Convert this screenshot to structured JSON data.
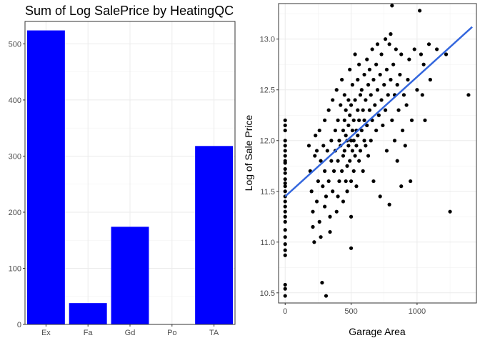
{
  "chart_data": [
    {
      "type": "bar",
      "title": "Sum of Log SalePrice by HeatingQC",
      "xlabel": "",
      "ylabel": "",
      "categories": [
        "Ex",
        "Fa",
        "Gd",
        "Po",
        "TA"
      ],
      "values": [
        524,
        38,
        174,
        0,
        318
      ],
      "ylim": [
        0,
        540
      ],
      "yticks": [
        0,
        100,
        200,
        300,
        400,
        500
      ],
      "bar_color": "#0000ff",
      "grid": true
    },
    {
      "type": "scatter",
      "title": "",
      "xlabel": "Garage Area",
      "ylabel": "Log of Sale Price",
      "xlim": [
        -50,
        1450
      ],
      "ylim": [
        10.4,
        13.35
      ],
      "xticks": [
        0,
        500,
        1000
      ],
      "yticks": [
        10.5,
        11.0,
        11.5,
        12.0,
        12.5,
        13.0
      ],
      "point_color": "#000000",
      "trend_color": "#3366dd",
      "trend_line": {
        "x": [
          0,
          1418
        ],
        "y": [
          11.45,
          13.12
        ]
      },
      "points": [
        [
          0,
          12.2
        ],
        [
          0,
          12.15
        ],
        [
          0,
          12.1
        ],
        [
          0,
          12.0
        ],
        [
          0,
          11.95
        ],
        [
          0,
          11.9
        ],
        [
          0,
          11.85
        ],
        [
          0,
          11.8
        ],
        [
          0,
          11.78
        ],
        [
          0,
          11.72
        ],
        [
          0,
          11.68
        ],
        [
          0,
          11.62
        ],
        [
          0,
          11.58
        ],
        [
          0,
          11.55
        ],
        [
          0,
          11.5
        ],
        [
          0,
          11.45
        ],
        [
          0,
          11.4
        ],
        [
          0,
          11.35
        ],
        [
          0,
          11.3
        ],
        [
          0,
          11.25
        ],
        [
          0,
          11.2
        ],
        [
          0,
          11.12
        ],
        [
          0,
          11.05
        ],
        [
          0,
          10.98
        ],
        [
          0,
          10.92
        ],
        [
          0,
          10.87
        ],
        [
          0,
          10.58
        ],
        [
          0,
          10.54
        ],
        [
          0,
          10.47
        ],
        [
          180,
          11.95
        ],
        [
          190,
          11.7
        ],
        [
          200,
          11.5
        ],
        [
          210,
          11.3
        ],
        [
          210,
          11.15
        ],
        [
          220,
          11.0
        ],
        [
          225,
          11.85
        ],
        [
          230,
          12.05
        ],
        [
          240,
          11.9
        ],
        [
          240,
          11.4
        ],
        [
          250,
          11.6
        ],
        [
          260,
          12.1
        ],
        [
          260,
          11.2
        ],
        [
          270,
          11.8
        ],
        [
          270,
          11.05
        ],
        [
          280,
          10.6
        ],
        [
          285,
          11.55
        ],
        [
          290,
          11.95
        ],
        [
          300,
          12.2
        ],
        [
          300,
          11.7
        ],
        [
          300,
          11.35
        ],
        [
          310,
          10.47
        ],
        [
          310,
          11.45
        ],
        [
          320,
          11.9
        ],
        [
          330,
          12.3
        ],
        [
          330,
          11.6
        ],
        [
          340,
          11.1
        ],
        [
          340,
          11.25
        ],
        [
          350,
          11.8
        ],
        [
          350,
          12.0
        ],
        [
          360,
          12.4
        ],
        [
          360,
          11.5
        ],
        [
          370,
          11.7
        ],
        [
          380,
          12.1
        ],
        [
          380,
          11.9
        ],
        [
          390,
          12.5
        ],
        [
          390,
          11.3
        ],
        [
          400,
          12.2
        ],
        [
          400,
          11.8
        ],
        [
          400,
          11.45
        ],
        [
          410,
          12.0
        ],
        [
          410,
          11.6
        ],
        [
          420,
          12.35
        ],
        [
          420,
          11.95
        ],
        [
          430,
          11.7
        ],
        [
          430,
          12.6
        ],
        [
          440,
          11.85
        ],
        [
          440,
          12.1
        ],
        [
          440,
          11.4
        ],
        [
          450,
          12.2
        ],
        [
          450,
          11.9
        ],
        [
          450,
          12.45
        ],
        [
          460,
          11.6
        ],
        [
          460,
          12.05
        ],
        [
          460,
          12.3
        ],
        [
          470,
          11.75
        ],
        [
          470,
          12.0
        ],
        [
          470,
          11.5
        ],
        [
          480,
          12.15
        ],
        [
          480,
          12.4
        ],
        [
          480,
          11.95
        ],
        [
          490,
          11.8
        ],
        [
          490,
          12.7
        ],
        [
          490,
          12.25
        ],
        [
          500,
          12.0
        ],
        [
          500,
          11.6
        ],
        [
          500,
          12.35
        ],
        [
          500,
          11.25
        ],
        [
          500,
          10.94
        ],
        [
          510,
          12.1
        ],
        [
          510,
          11.9
        ],
        [
          510,
          12.55
        ],
        [
          520,
          11.7
        ],
        [
          520,
          12.2
        ],
        [
          520,
          12.0
        ],
        [
          530,
          12.4
        ],
        [
          530,
          11.85
        ],
        [
          530,
          12.85
        ],
        [
          540,
          12.1
        ],
        [
          540,
          11.95
        ],
        [
          540,
          11.55
        ],
        [
          550,
          12.3
        ],
        [
          550,
          12.6
        ],
        [
          550,
          12.05
        ],
        [
          560,
          11.8
        ],
        [
          560,
          12.2
        ],
        [
          560,
          12.75
        ],
        [
          570,
          12.45
        ],
        [
          570,
          11.9
        ],
        [
          580,
          12.1
        ],
        [
          580,
          12.5
        ],
        [
          590,
          12.3
        ],
        [
          590,
          11.7
        ],
        [
          600,
          12.65
        ],
        [
          600,
          12.0
        ],
        [
          600,
          12.2
        ],
        [
          610,
          12.4
        ],
        [
          610,
          11.95
        ],
        [
          620,
          12.8
        ],
        [
          620,
          12.15
        ],
        [
          630,
          12.55
        ],
        [
          630,
          11.85
        ],
        [
          640,
          12.3
        ],
        [
          640,
          12.7
        ],
        [
          650,
          12.0
        ],
        [
          650,
          12.45
        ],
        [
          660,
          12.9
        ],
        [
          660,
          12.2
        ],
        [
          670,
          12.6
        ],
        [
          670,
          11.6
        ],
        [
          680,
          12.35
        ],
        [
          690,
          12.75
        ],
        [
          690,
          12.1
        ],
        [
          700,
          12.5
        ],
        [
          700,
          12.95
        ],
        [
          710,
          12.25
        ],
        [
          720,
          12.65
        ],
        [
          720,
          11.45
        ],
        [
          730,
          12.4
        ],
        [
          730,
          12.85
        ],
        [
          740,
          12.15
        ],
        [
          750,
          12.55
        ],
        [
          760,
          13.0
        ],
        [
          760,
          12.3
        ],
        [
          770,
          11.9
        ],
        [
          770,
          12.7
        ],
        [
          780,
          12.45
        ],
        [
          790,
          12.95
        ],
        [
          790,
          11.37
        ],
        [
          800,
          12.6
        ],
        [
          800,
          13.05
        ],
        [
          810,
          12.2
        ],
        [
          810,
          13.33
        ],
        [
          820,
          12.75
        ],
        [
          830,
          12.45
        ],
        [
          830,
          12.0
        ],
        [
          840,
          12.9
        ],
        [
          850,
          12.55
        ],
        [
          850,
          11.8
        ],
        [
          860,
          12.3
        ],
        [
          870,
          12.65
        ],
        [
          880,
          11.55
        ],
        [
          880,
          12.85
        ],
        [
          890,
          12.1
        ],
        [
          900,
          12.45
        ],
        [
          910,
          11.95
        ],
        [
          920,
          12.35
        ],
        [
          930,
          12.6
        ],
        [
          940,
          12.8
        ],
        [
          950,
          11.6
        ],
        [
          960,
          12.2
        ],
        [
          980,
          12.9
        ],
        [
          1000,
          12.5
        ],
        [
          1020,
          13.28
        ],
        [
          1030,
          12.85
        ],
        [
          1040,
          12.45
        ],
        [
          1050,
          12.75
        ],
        [
          1060,
          12.2
        ],
        [
          1090,
          12.95
        ],
        [
          1100,
          12.6
        ],
        [
          1150,
          12.9
        ],
        [
          1220,
          12.85
        ],
        [
          1250,
          11.3
        ],
        [
          1390,
          12.45
        ]
      ]
    }
  ]
}
